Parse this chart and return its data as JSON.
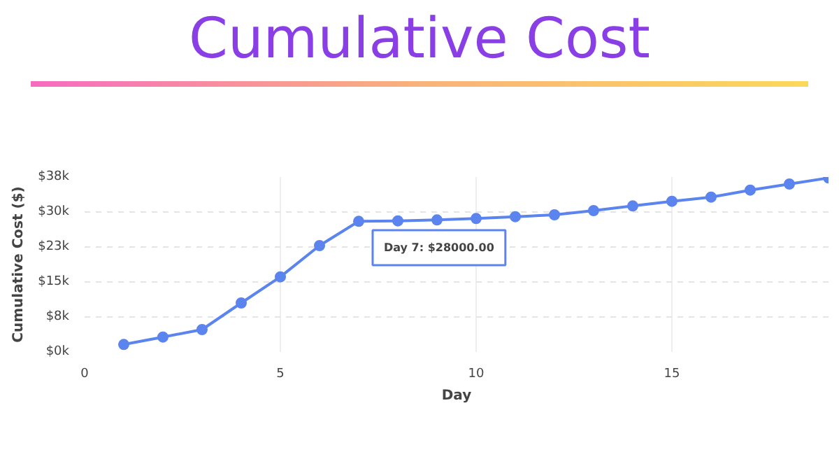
{
  "chart_data": {
    "type": "line",
    "title": "Cumulative Cost",
    "xlabel": "Day",
    "ylabel": "Cumulative Cost ($)",
    "x": [
      1,
      2,
      3,
      4,
      5,
      6,
      7,
      8,
      9,
      10,
      11,
      12,
      13,
      14,
      15,
      16,
      17,
      18,
      19
    ],
    "series": [
      {
        "color": "#5b84ee",
        "values": [
          1600,
          3200,
          4800,
          10500,
          16100,
          22800,
          28000,
          28100,
          28300,
          28600,
          29000,
          29400,
          30300,
          31300,
          32300,
          33200,
          34700,
          36000,
          37300
        ]
      }
    ],
    "xlim": [
      0,
      19
    ],
    "xticks": [
      0,
      5,
      10,
      15
    ],
    "ylim": [
      0,
      37500
    ],
    "yticks": [
      {
        "value": 0,
        "label": "$0k"
      },
      {
        "value": 7500,
        "label": "$8k"
      },
      {
        "value": 15000,
        "label": "$15k"
      },
      {
        "value": 22500,
        "label": "$23k"
      },
      {
        "value": 30000,
        "label": "$30k"
      },
      {
        "value": 37500,
        "label": "$38k"
      }
    ],
    "grid": true,
    "marker": "circle",
    "line_style": "solid",
    "annotations": [
      "Day 7: $28000.00"
    ]
  }
}
